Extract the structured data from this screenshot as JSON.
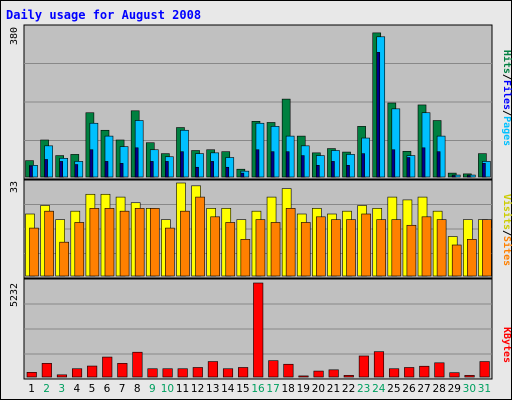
{
  "chart_data": [
    {
      "type": "bar",
      "title": "Daily usage for August 2008",
      "ymax_label": "380",
      "ylim": [
        0,
        380
      ],
      "legend": [
        "Pages",
        "Files",
        "Hits"
      ],
      "categories": [
        "1",
        "2",
        "3",
        "4",
        "5",
        "6",
        "7",
        "8",
        "9",
        "10",
        "11",
        "12",
        "13",
        "14",
        "15",
        "16",
        "17",
        "18",
        "19",
        "20",
        "21",
        "22",
        "23",
        "24",
        "25",
        "26",
        "27",
        "28",
        "29",
        "30",
        "31"
      ],
      "series": [
        {
          "name": "Hits",
          "values": [
            42,
            95,
            55,
            58,
            165,
            120,
            95,
            170,
            88,
            60,
            127,
            68,
            70,
            65,
            20,
            143,
            140,
            200,
            105,
            62,
            73,
            64,
            130,
            370,
            190,
            66,
            185,
            145,
            10,
            8,
            60
          ]
        },
        {
          "name": "Files",
          "values": [
            30,
            80,
            48,
            40,
            138,
            105,
            78,
            145,
            70,
            52,
            120,
            60,
            62,
            50,
            15,
            138,
            130,
            105,
            80,
            55,
            68,
            58,
            100,
            360,
            175,
            55,
            165,
            105,
            5,
            5,
            40
          ]
        },
        {
          "name": "Pages",
          "values": [
            28,
            45,
            40,
            32,
            70,
            40,
            35,
            75,
            40,
            40,
            65,
            25,
            40,
            25,
            10,
            70,
            65,
            65,
            55,
            30,
            40,
            30,
            60,
            320,
            70,
            50,
            75,
            65,
            3,
            3,
            35
          ]
        }
      ]
    },
    {
      "type": "bar",
      "ymax_label": "33",
      "ylim": [
        0,
        33
      ],
      "legend": [
        "Sites",
        "Visits"
      ],
      "categories": [
        "1",
        "2",
        "3",
        "4",
        "5",
        "6",
        "7",
        "8",
        "9",
        "10",
        "11",
        "12",
        "13",
        "14",
        "15",
        "16",
        "17",
        "18",
        "19",
        "20",
        "21",
        "22",
        "23",
        "24",
        "25",
        "26",
        "27",
        "28",
        "29",
        "30",
        "31"
      ],
      "series": [
        {
          "name": "Visits",
          "values": [
            22,
            25,
            20,
            23,
            29,
            29,
            28,
            26,
            24,
            20,
            33,
            32,
            24,
            24,
            20,
            23,
            28,
            31,
            22,
            24,
            22,
            23,
            25,
            24,
            28,
            27,
            28,
            23,
            14,
            20,
            20
          ]
        },
        {
          "name": "Sites",
          "values": [
            17,
            23,
            12,
            19,
            24,
            24,
            23,
            24,
            24,
            17,
            23,
            28,
            21,
            19,
            13,
            20,
            19,
            24,
            19,
            21,
            20,
            20,
            22,
            20,
            20,
            18,
            21,
            20,
            11,
            13,
            20
          ]
        }
      ]
    },
    {
      "type": "bar",
      "ymax_label": "5232",
      "ylim": [
        0,
        5232
      ],
      "legend": [
        "KBytes"
      ],
      "categories": [
        "1",
        "2",
        "3",
        "4",
        "5",
        "6",
        "7",
        "8",
        "9",
        "10",
        "11",
        "12",
        "13",
        "14",
        "15",
        "16",
        "17",
        "18",
        "19",
        "20",
        "21",
        "22",
        "23",
        "24",
        "25",
        "26",
        "27",
        "28",
        "29",
        "30",
        "31"
      ],
      "series": [
        {
          "name": "KBytes",
          "values": [
            260,
            760,
            120,
            460,
            610,
            1110,
            760,
            1380,
            460,
            460,
            460,
            530,
            860,
            460,
            530,
            5232,
            910,
            710,
            60,
            330,
            400,
            90,
            1170,
            1410,
            460,
            530,
            600,
            790,
            240,
            90,
            860
          ]
        }
      ]
    }
  ],
  "weekend_days": [
    2,
    3,
    9,
    10,
    16,
    17,
    23,
    24,
    30,
    31
  ],
  "colors": {
    "title": "#0000ff",
    "hits": "#008040",
    "files": "#00c0ff",
    "pages": "#00008b",
    "visits": "#ffff00",
    "sites": "#ff8000",
    "kbytes": "#ff0000",
    "plot_bg": "#c0c0c0",
    "frame_bg": "#e8e8e8",
    "weekday": "#000000",
    "weekend": "#00a060"
  }
}
